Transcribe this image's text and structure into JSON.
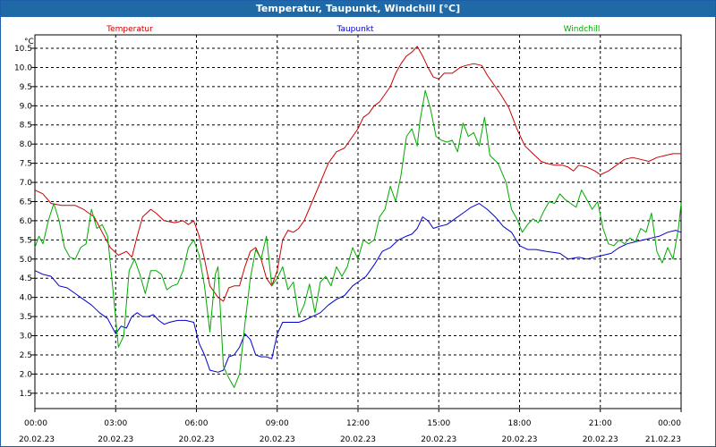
{
  "window": {
    "title": "Temperatur, Taupunkt, Windchill [°C]"
  },
  "chart_data": {
    "type": "line",
    "title": "Temperatur, Taupunkt, Windchill [°C]",
    "ylabel": "°C",
    "ylim": [
      1.1,
      10.85
    ],
    "grid": true,
    "legend_placement": "top",
    "y_ticks": [
      "1.5",
      "2.0",
      "2.5",
      "3.0",
      "3.5",
      "4.0",
      "4.5",
      "5.0",
      "5.5",
      "6.0",
      "6.5",
      "7.0",
      "7.5",
      "8.0",
      "8.5",
      "9.0",
      "9.5",
      "10.0",
      "10.5"
    ],
    "x_ticks": [
      {
        "time": "00:00",
        "date": "20.02.23"
      },
      {
        "time": "03:00",
        "date": "20.02.23"
      },
      {
        "time": "06:00",
        "date": "20.02.23"
      },
      {
        "time": "09:00",
        "date": "20.02.23"
      },
      {
        "time": "12:00",
        "date": "20.02.23"
      },
      {
        "time": "15:00",
        "date": "20.02.23"
      },
      {
        "time": "18:00",
        "date": "20.02.23"
      },
      {
        "time": "21:00",
        "date": "20.02.23"
      },
      {
        "time": "00:00",
        "date": "21.02.23"
      }
    ],
    "x_unit": "hours since 20.02.23 00:00",
    "xlim": [
      0,
      24
    ],
    "series": [
      {
        "name": "Temperatur",
        "color": "#cc0000",
        "points": [
          [
            0,
            6.8
          ],
          [
            0.3,
            6.7
          ],
          [
            0.6,
            6.45
          ],
          [
            1.0,
            6.4
          ],
          [
            1.5,
            6.4
          ],
          [
            1.8,
            6.3
          ],
          [
            2.2,
            6.1
          ],
          [
            2.5,
            5.7
          ],
          [
            2.8,
            5.3
          ],
          [
            3.1,
            5.1
          ],
          [
            3.4,
            5.2
          ],
          [
            3.6,
            5.05
          ],
          [
            3.8,
            5.6
          ],
          [
            4.0,
            6.1
          ],
          [
            4.3,
            6.3
          ],
          [
            4.5,
            6.2
          ],
          [
            4.8,
            6.0
          ],
          [
            5.2,
            5.95
          ],
          [
            5.5,
            6.0
          ],
          [
            5.7,
            5.9
          ],
          [
            5.9,
            6.0
          ],
          [
            6.1,
            5.6
          ],
          [
            6.3,
            5.0
          ],
          [
            6.5,
            4.3
          ],
          [
            6.8,
            4.0
          ],
          [
            7.0,
            3.9
          ],
          [
            7.2,
            4.25
          ],
          [
            7.4,
            4.3
          ],
          [
            7.6,
            4.3
          ],
          [
            7.8,
            4.8
          ],
          [
            8.0,
            5.2
          ],
          [
            8.2,
            5.3
          ],
          [
            8.4,
            5.0
          ],
          [
            8.6,
            4.5
          ],
          [
            8.8,
            4.3
          ],
          [
            9.0,
            4.7
          ],
          [
            9.2,
            5.5
          ],
          [
            9.4,
            5.75
          ],
          [
            9.6,
            5.7
          ],
          [
            9.8,
            5.8
          ],
          [
            10.0,
            6.0
          ],
          [
            10.3,
            6.5
          ],
          [
            10.6,
            7.0
          ],
          [
            10.9,
            7.5
          ],
          [
            11.2,
            7.8
          ],
          [
            11.5,
            7.9
          ],
          [
            11.8,
            8.2
          ],
          [
            12.0,
            8.4
          ],
          [
            12.2,
            8.7
          ],
          [
            12.4,
            8.8
          ],
          [
            12.6,
            9.0
          ],
          [
            12.8,
            9.1
          ],
          [
            13.0,
            9.3
          ],
          [
            13.2,
            9.5
          ],
          [
            13.4,
            9.85
          ],
          [
            13.6,
            10.1
          ],
          [
            13.8,
            10.3
          ],
          [
            14.0,
            10.4
          ],
          [
            14.2,
            10.55
          ],
          [
            14.4,
            10.3
          ],
          [
            14.6,
            10.0
          ],
          [
            14.8,
            9.75
          ],
          [
            15.0,
            9.7
          ],
          [
            15.2,
            9.85
          ],
          [
            15.5,
            9.85
          ],
          [
            15.8,
            10.0
          ],
          [
            16.0,
            10.05
          ],
          [
            16.3,
            10.1
          ],
          [
            16.6,
            10.05
          ],
          [
            16.8,
            9.8
          ],
          [
            17.0,
            9.6
          ],
          [
            17.3,
            9.3
          ],
          [
            17.6,
            8.95
          ],
          [
            17.9,
            8.4
          ],
          [
            18.2,
            7.95
          ],
          [
            18.5,
            7.75
          ],
          [
            18.8,
            7.55
          ],
          [
            19.0,
            7.5
          ],
          [
            19.3,
            7.45
          ],
          [
            19.6,
            7.45
          ],
          [
            19.8,
            7.4
          ],
          [
            20.0,
            7.3
          ],
          [
            20.2,
            7.45
          ],
          [
            20.5,
            7.4
          ],
          [
            20.8,
            7.3
          ],
          [
            21.0,
            7.2
          ],
          [
            21.3,
            7.3
          ],
          [
            21.6,
            7.45
          ],
          [
            21.9,
            7.6
          ],
          [
            22.2,
            7.65
          ],
          [
            22.5,
            7.6
          ],
          [
            22.8,
            7.55
          ],
          [
            23.1,
            7.65
          ],
          [
            23.4,
            7.7
          ],
          [
            23.7,
            7.75
          ],
          [
            24.0,
            7.75
          ]
        ]
      },
      {
        "name": "Taupunkt",
        "color": "#0000cc",
        "points": [
          [
            0,
            4.7
          ],
          [
            0.3,
            4.6
          ],
          [
            0.6,
            4.55
          ],
          [
            0.9,
            4.3
          ],
          [
            1.2,
            4.25
          ],
          [
            1.5,
            4.1
          ],
          [
            1.8,
            3.95
          ],
          [
            2.1,
            3.8
          ],
          [
            2.4,
            3.6
          ],
          [
            2.7,
            3.45
          ],
          [
            3.0,
            3.05
          ],
          [
            3.2,
            3.25
          ],
          [
            3.4,
            3.2
          ],
          [
            3.6,
            3.5
          ],
          [
            3.8,
            3.6
          ],
          [
            4.0,
            3.5
          ],
          [
            4.2,
            3.5
          ],
          [
            4.4,
            3.55
          ],
          [
            4.6,
            3.4
          ],
          [
            4.8,
            3.3
          ],
          [
            5.0,
            3.35
          ],
          [
            5.3,
            3.4
          ],
          [
            5.6,
            3.4
          ],
          [
            5.9,
            3.35
          ],
          [
            6.1,
            2.8
          ],
          [
            6.3,
            2.5
          ],
          [
            6.5,
            2.1
          ],
          [
            6.8,
            2.05
          ],
          [
            7.0,
            2.1
          ],
          [
            7.2,
            2.45
          ],
          [
            7.4,
            2.5
          ],
          [
            7.6,
            2.7
          ],
          [
            7.8,
            3.05
          ],
          [
            8.0,
            2.9
          ],
          [
            8.2,
            2.5
          ],
          [
            8.4,
            2.45
          ],
          [
            8.6,
            2.45
          ],
          [
            8.8,
            2.4
          ],
          [
            9.0,
            3.05
          ],
          [
            9.2,
            3.35
          ],
          [
            9.5,
            3.35
          ],
          [
            9.8,
            3.35
          ],
          [
            10.0,
            3.4
          ],
          [
            10.3,
            3.5
          ],
          [
            10.6,
            3.6
          ],
          [
            10.9,
            3.8
          ],
          [
            11.2,
            3.95
          ],
          [
            11.5,
            4.05
          ],
          [
            11.8,
            4.3
          ],
          [
            12.0,
            4.4
          ],
          [
            12.3,
            4.55
          ],
          [
            12.6,
            4.85
          ],
          [
            12.9,
            5.2
          ],
          [
            13.2,
            5.3
          ],
          [
            13.5,
            5.5
          ],
          [
            13.8,
            5.6
          ],
          [
            14.0,
            5.65
          ],
          [
            14.2,
            5.8
          ],
          [
            14.4,
            6.1
          ],
          [
            14.6,
            6.0
          ],
          [
            14.8,
            5.8
          ],
          [
            15.0,
            5.85
          ],
          [
            15.3,
            5.9
          ],
          [
            15.6,
            6.05
          ],
          [
            15.9,
            6.2
          ],
          [
            16.2,
            6.35
          ],
          [
            16.5,
            6.45
          ],
          [
            16.8,
            6.3
          ],
          [
            17.1,
            6.1
          ],
          [
            17.4,
            5.85
          ],
          [
            17.7,
            5.7
          ],
          [
            18.0,
            5.35
          ],
          [
            18.3,
            5.25
          ],
          [
            18.6,
            5.25
          ],
          [
            19.0,
            5.2
          ],
          [
            19.5,
            5.15
          ],
          [
            19.8,
            5.0
          ],
          [
            20.2,
            5.05
          ],
          [
            20.5,
            5.0
          ],
          [
            20.8,
            5.05
          ],
          [
            21.1,
            5.1
          ],
          [
            21.4,
            5.15
          ],
          [
            21.7,
            5.3
          ],
          [
            22.0,
            5.4
          ],
          [
            22.3,
            5.45
          ],
          [
            22.6,
            5.5
          ],
          [
            22.9,
            5.55
          ],
          [
            23.2,
            5.6
          ],
          [
            23.5,
            5.7
          ],
          [
            23.8,
            5.75
          ],
          [
            24.0,
            5.7
          ]
        ]
      },
      {
        "name": "Windchill",
        "color": "#00aa00",
        "points": [
          [
            0,
            5.3
          ],
          [
            0.15,
            5.6
          ],
          [
            0.3,
            5.4
          ],
          [
            0.5,
            6.0
          ],
          [
            0.7,
            6.45
          ],
          [
            0.9,
            6.0
          ],
          [
            1.1,
            5.3
          ],
          [
            1.3,
            5.05
          ],
          [
            1.5,
            5.0
          ],
          [
            1.7,
            5.3
          ],
          [
            1.9,
            5.4
          ],
          [
            2.1,
            6.3
          ],
          [
            2.3,
            5.8
          ],
          [
            2.5,
            5.9
          ],
          [
            2.7,
            5.6
          ],
          [
            2.9,
            4.2
          ],
          [
            3.1,
            2.7
          ],
          [
            3.3,
            3.0
          ],
          [
            3.5,
            4.7
          ],
          [
            3.7,
            5.0
          ],
          [
            3.9,
            4.6
          ],
          [
            4.1,
            4.1
          ],
          [
            4.3,
            4.7
          ],
          [
            4.5,
            4.7
          ],
          [
            4.7,
            4.6
          ],
          [
            4.9,
            4.2
          ],
          [
            5.1,
            4.3
          ],
          [
            5.3,
            4.35
          ],
          [
            5.5,
            4.7
          ],
          [
            5.7,
            5.3
          ],
          [
            5.9,
            5.5
          ],
          [
            6.1,
            5.1
          ],
          [
            6.3,
            4.3
          ],
          [
            6.5,
            3.1
          ],
          [
            6.7,
            4.6
          ],
          [
            6.8,
            4.8
          ],
          [
            6.9,
            3.5
          ],
          [
            7.0,
            2.2
          ],
          [
            7.2,
            1.9
          ],
          [
            7.4,
            1.65
          ],
          [
            7.6,
            2.0
          ],
          [
            7.8,
            3.3
          ],
          [
            8.0,
            4.5
          ],
          [
            8.2,
            5.25
          ],
          [
            8.4,
            5.0
          ],
          [
            8.6,
            5.6
          ],
          [
            8.8,
            4.3
          ],
          [
            9.0,
            4.5
          ],
          [
            9.2,
            4.8
          ],
          [
            9.4,
            4.2
          ],
          [
            9.6,
            4.4
          ],
          [
            9.8,
            3.5
          ],
          [
            10.0,
            3.8
          ],
          [
            10.2,
            4.35
          ],
          [
            10.4,
            3.6
          ],
          [
            10.6,
            4.4
          ],
          [
            10.8,
            4.55
          ],
          [
            11.0,
            4.3
          ],
          [
            11.2,
            4.8
          ],
          [
            11.4,
            4.55
          ],
          [
            11.6,
            4.8
          ],
          [
            11.8,
            5.3
          ],
          [
            12.0,
            5.0
          ],
          [
            12.2,
            5.5
          ],
          [
            12.4,
            5.4
          ],
          [
            12.6,
            5.5
          ],
          [
            12.8,
            6.1
          ],
          [
            13.0,
            6.3
          ],
          [
            13.2,
            6.9
          ],
          [
            13.4,
            6.5
          ],
          [
            13.6,
            7.2
          ],
          [
            13.8,
            8.2
          ],
          [
            14.0,
            8.4
          ],
          [
            14.2,
            7.95
          ],
          [
            14.3,
            8.6
          ],
          [
            14.5,
            9.4
          ],
          [
            14.7,
            8.9
          ],
          [
            14.9,
            8.2
          ],
          [
            15.1,
            8.1
          ],
          [
            15.3,
            8.05
          ],
          [
            15.5,
            8.1
          ],
          [
            15.7,
            7.8
          ],
          [
            15.9,
            8.55
          ],
          [
            16.1,
            8.2
          ],
          [
            16.3,
            8.3
          ],
          [
            16.5,
            7.95
          ],
          [
            16.7,
            8.7
          ],
          [
            16.9,
            7.7
          ],
          [
            17.2,
            7.5
          ],
          [
            17.5,
            7.0
          ],
          [
            17.7,
            6.3
          ],
          [
            17.9,
            6.05
          ],
          [
            18.1,
            5.7
          ],
          [
            18.3,
            5.9
          ],
          [
            18.5,
            6.05
          ],
          [
            18.7,
            5.95
          ],
          [
            18.9,
            6.25
          ],
          [
            19.1,
            6.5
          ],
          [
            19.3,
            6.45
          ],
          [
            19.5,
            6.7
          ],
          [
            19.7,
            6.55
          ],
          [
            19.9,
            6.45
          ],
          [
            20.1,
            6.35
          ],
          [
            20.3,
            6.8
          ],
          [
            20.5,
            6.55
          ],
          [
            20.7,
            6.3
          ],
          [
            20.9,
            6.5
          ],
          [
            21.1,
            5.8
          ],
          [
            21.3,
            5.4
          ],
          [
            21.5,
            5.35
          ],
          [
            21.7,
            5.5
          ],
          [
            21.9,
            5.4
          ],
          [
            22.1,
            5.55
          ],
          [
            22.3,
            5.45
          ],
          [
            22.5,
            5.8
          ],
          [
            22.7,
            5.7
          ],
          [
            22.9,
            6.2
          ],
          [
            23.1,
            5.2
          ],
          [
            23.3,
            4.9
          ],
          [
            23.5,
            5.3
          ],
          [
            23.7,
            5.0
          ],
          [
            23.9,
            5.8
          ],
          [
            24.0,
            6.45
          ]
        ]
      }
    ]
  }
}
